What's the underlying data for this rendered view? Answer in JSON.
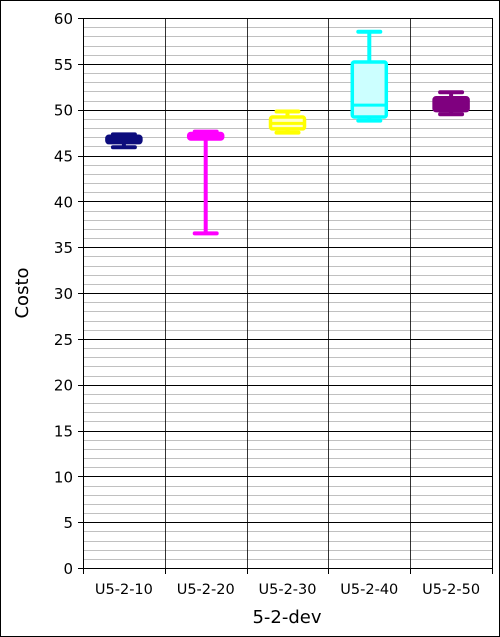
{
  "chart_data": {
    "type": "box",
    "xlabel": "5-2-dev",
    "ylabel": "Costo",
    "ylim": [
      0,
      60
    ],
    "y_major_step": 5,
    "y_minor_step": 1,
    "grid": true,
    "categories": [
      "U5-2-10",
      "U5-2-20",
      "U5-2-30",
      "U5-2-40",
      "U5-2-50"
    ],
    "boxes": [
      {
        "category": "U5-2-10",
        "color": "#0c0c7c",
        "fill": "#0c0c7c",
        "min": 45.9,
        "q1": 46.4,
        "median": 46.8,
        "q3": 47.1,
        "max": 47.3
      },
      {
        "category": "U5-2-20",
        "color": "#ff00ff",
        "fill": "#ffccff",
        "min": 36.5,
        "q1": 46.8,
        "median": 47.1,
        "q3": 47.4,
        "max": 47.6
      },
      {
        "category": "U5-2-30",
        "color": "#ffff00",
        "fill": "#ffffcc",
        "min": 47.5,
        "q1": 47.9,
        "median": 48.5,
        "q3": 49.2,
        "max": 49.8
      },
      {
        "category": "U5-2-40",
        "color": "#00ffff",
        "fill": "#ccffff",
        "min": 48.8,
        "q1": 49.2,
        "median": 50.5,
        "q3": 55.2,
        "max": 58.5
      },
      {
        "category": "U5-2-50",
        "color": "#7f007f",
        "fill": "#7f007f",
        "min": 49.5,
        "q1": 49.9,
        "median": 50.6,
        "q3": 51.3,
        "max": 51.9
      }
    ]
  }
}
